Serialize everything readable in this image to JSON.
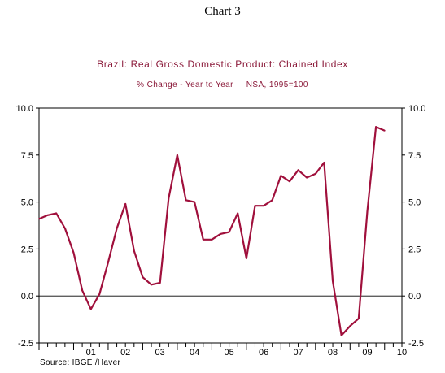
{
  "chart_number": "Chart 3",
  "source": "Source:  IBGE /Haver",
  "colors": {
    "series": "#a0103c",
    "title": "#8b1a3a",
    "axis": "#000000"
  },
  "chart_data": {
    "type": "line",
    "title": "Brazil: Real Gross Domestic Product: Chained Index",
    "subtitle": "% Change - Year to Year     NSA, 1995=100",
    "ylim": [
      -2.5,
      10.0
    ],
    "yticks": [
      "10.0",
      "7.5",
      "5.0",
      "2.5",
      "0.0",
      "-2.5"
    ],
    "ytick_values": [
      10.0,
      7.5,
      5.0,
      2.5,
      0.0,
      -2.5
    ],
    "xlim": [
      2000,
      2010.5
    ],
    "xticks": [
      "01",
      "02",
      "03",
      "04",
      "05",
      "06",
      "07",
      "08",
      "09",
      "10"
    ],
    "grid": false,
    "zero_line": true,
    "series": [
      {
        "values": [
          {
            "x": 2000.0,
            "y": 4.1
          },
          {
            "x": 2000.25,
            "y": 4.3
          },
          {
            "x": 2000.5,
            "y": 4.4
          },
          {
            "x": 2000.75,
            "y": 3.6
          },
          {
            "x": 2001.0,
            "y": 2.3
          },
          {
            "x": 2001.25,
            "y": 0.3
          },
          {
            "x": 2001.5,
            "y": -0.7
          },
          {
            "x": 2001.75,
            "y": 0.1
          },
          {
            "x": 2002.0,
            "y": 1.8
          },
          {
            "x": 2002.25,
            "y": 3.6
          },
          {
            "x": 2002.5,
            "y": 4.9
          },
          {
            "x": 2002.75,
            "y": 2.4
          },
          {
            "x": 2003.0,
            "y": 1.0
          },
          {
            "x": 2003.25,
            "y": 0.6
          },
          {
            "x": 2003.5,
            "y": 0.7
          },
          {
            "x": 2003.75,
            "y": 5.2
          },
          {
            "x": 2004.0,
            "y": 7.5
          },
          {
            "x": 2004.25,
            "y": 5.1
          },
          {
            "x": 2004.5,
            "y": 5.0
          },
          {
            "x": 2004.75,
            "y": 3.0
          },
          {
            "x": 2005.0,
            "y": 3.0
          },
          {
            "x": 2005.25,
            "y": 3.3
          },
          {
            "x": 2005.5,
            "y": 3.4
          },
          {
            "x": 2005.75,
            "y": 4.4
          },
          {
            "x": 2006.0,
            "y": 2.0
          },
          {
            "x": 2006.25,
            "y": 4.8
          },
          {
            "x": 2006.5,
            "y": 4.8
          },
          {
            "x": 2006.75,
            "y": 5.1
          },
          {
            "x": 2007.0,
            "y": 6.4
          },
          {
            "x": 2007.25,
            "y": 6.1
          },
          {
            "x": 2007.5,
            "y": 6.7
          },
          {
            "x": 2007.75,
            "y": 6.3
          },
          {
            "x": 2008.0,
            "y": 6.5
          },
          {
            "x": 2008.25,
            "y": 7.1
          },
          {
            "x": 2008.5,
            "y": 0.8
          },
          {
            "x": 2008.75,
            "y": -2.1
          },
          {
            "x": 2009.0,
            "y": -1.6
          },
          {
            "x": 2009.25,
            "y": -1.2
          },
          {
            "x": 2009.5,
            "y": 4.5
          },
          {
            "x": 2009.75,
            "y": 9.0
          },
          {
            "x": 2010.0,
            "y": 8.8
          }
        ]
      }
    ]
  }
}
